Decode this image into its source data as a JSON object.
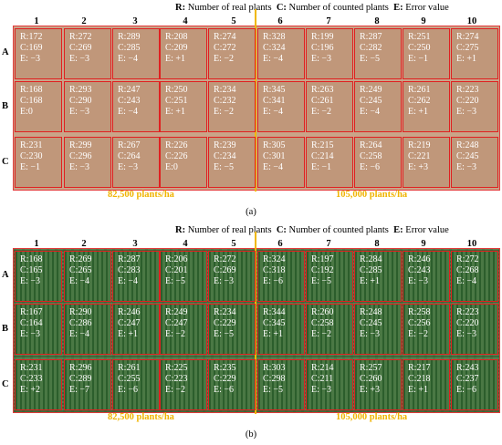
{
  "legend": {
    "r_key": "R:",
    "r_text": "Number of real plants",
    "c_key": "C:",
    "c_text": "Number of counted plants",
    "e_key": "E:",
    "e_text": "Error value"
  },
  "columns": [
    "1",
    "2",
    "3",
    "4",
    "5",
    "6",
    "7",
    "8",
    "9",
    "10"
  ],
  "rows": [
    "A",
    "B",
    "C"
  ],
  "density_left": "82,500 plants/ha",
  "density_right": "105,000 plants/ha",
  "panels": [
    {
      "caption": "(a)",
      "plots": [
        [
          {
            "r": "R:172",
            "c": "C:169",
            "e": "E: −3"
          },
          {
            "r": "R:272",
            "c": "C:269",
            "e": "E: −3"
          },
          {
            "r": "R:289",
            "c": "C:285",
            "e": "E: −4"
          },
          {
            "r": "R:208",
            "c": "C:209",
            "e": "E: +1"
          },
          {
            "r": "R:274",
            "c": "C:272",
            "e": "E: −2"
          },
          {
            "r": "R:328",
            "c": "C:324",
            "e": "E: −4"
          },
          {
            "r": "R:199",
            "c": "C:196",
            "e": "E: −3"
          },
          {
            "r": "R:287",
            "c": "C:282",
            "e": "E: −5"
          },
          {
            "r": "R:251",
            "c": "C:250",
            "e": "E: −1"
          },
          {
            "r": "R:274",
            "c": "C:275",
            "e": "E: +1"
          }
        ],
        [
          {
            "r": "R:168",
            "c": "C:168",
            "e": "E:0"
          },
          {
            "r": "R:293",
            "c": "C:290",
            "e": "E: −3"
          },
          {
            "r": "R:247",
            "c": "C:243",
            "e": "E: −4"
          },
          {
            "r": "R:250",
            "c": "C:251",
            "e": "E: +1"
          },
          {
            "r": "R:234",
            "c": "C:232",
            "e": "E: −2"
          },
          {
            "r": "R:345",
            "c": "C:341",
            "e": "E: −4"
          },
          {
            "r": "R:263",
            "c": "C:261",
            "e": "E: −2"
          },
          {
            "r": "R:249",
            "c": "C:245",
            "e": "E: −4"
          },
          {
            "r": "R:261",
            "c": "C:262",
            "e": "E: +1"
          },
          {
            "r": "R:223",
            "c": "C:220",
            "e": "E: −3"
          }
        ],
        [
          {
            "r": "R:231",
            "c": "C:230",
            "e": "E: −1"
          },
          {
            "r": "R:299",
            "c": "C:296",
            "e": "E: −3"
          },
          {
            "r": "R:267",
            "c": "C:264",
            "e": "E: −3"
          },
          {
            "r": "R:226",
            "c": "C:226",
            "e": "E:0"
          },
          {
            "r": "R:239",
            "c": "C:234",
            "e": "E: −5"
          },
          {
            "r": "R:305",
            "c": "C:301",
            "e": "E: −4"
          },
          {
            "r": "R:215",
            "c": "C:214",
            "e": "E: −1"
          },
          {
            "r": "R:264",
            "c": "C:258",
            "e": "E: −6"
          },
          {
            "r": "R:219",
            "c": "C:221",
            "e": "E: +3"
          },
          {
            "r": "R:248",
            "c": "C:245",
            "e": "E: −3"
          }
        ]
      ]
    },
    {
      "caption": "(b)",
      "plots": [
        [
          {
            "r": "R:168",
            "c": "C:165",
            "e": "E: −3"
          },
          {
            "r": "R:269",
            "c": "C:265",
            "e": "E: −4"
          },
          {
            "r": "R:287",
            "c": "C:283",
            "e": "E: −4"
          },
          {
            "r": "R:206",
            "c": "C:201",
            "e": "E: −5"
          },
          {
            "r": "R:272",
            "c": "C:269",
            "e": "E: −3"
          },
          {
            "r": "R:324",
            "c": "C:318",
            "e": "E: −6"
          },
          {
            "r": "R:197",
            "c": "C:192",
            "e": "E: −5"
          },
          {
            "r": "R:284",
            "c": "C:285",
            "e": "E: +1"
          },
          {
            "r": "R:246",
            "c": "C:243",
            "e": "E: −3"
          },
          {
            "r": "R:272",
            "c": "C:268",
            "e": "E: −4"
          }
        ],
        [
          {
            "r": "R:167",
            "c": "C:164",
            "e": "E: −3"
          },
          {
            "r": "R:290",
            "c": "C:286",
            "e": "E: −4"
          },
          {
            "r": "R:246",
            "c": "C:247",
            "e": "E: +1"
          },
          {
            "r": "R:249",
            "c": "C:247",
            "e": "E: −2"
          },
          {
            "r": "R:234",
            "c": "C:229",
            "e": "E: −5"
          },
          {
            "r": "R:344",
            "c": "C:345",
            "e": "E: +1"
          },
          {
            "r": "R:260",
            "c": "C:258",
            "e": "E: −2"
          },
          {
            "r": "R:248",
            "c": "C:245",
            "e": "E: −3"
          },
          {
            "r": "R:258",
            "c": "C:256",
            "e": "E: −2"
          },
          {
            "r": "R:223",
            "c": "C:220",
            "e": "E: −3"
          }
        ],
        [
          {
            "r": "R:231",
            "c": "C:233",
            "e": "E: +2"
          },
          {
            "r": "R:296",
            "c": "C:289",
            "e": "E: −7"
          },
          {
            "r": "R:261",
            "c": "C:255",
            "e": "E: −6"
          },
          {
            "r": "R:225",
            "c": "C:223",
            "e": "E: −2"
          },
          {
            "r": "R:235",
            "c": "C:229",
            "e": "E: −6"
          },
          {
            "r": "R:303",
            "c": "C:298",
            "e": "E: −5"
          },
          {
            "r": "R:214",
            "c": "C:211",
            "e": "E: −3"
          },
          {
            "r": "R:257",
            "c": "C:260",
            "e": "E: +3"
          },
          {
            "r": "R:217",
            "c": "C:218",
            "e": "E: +1"
          },
          {
            "r": "R:243",
            "c": "C:237",
            "e": "E: −6"
          }
        ]
      ]
    }
  ]
}
